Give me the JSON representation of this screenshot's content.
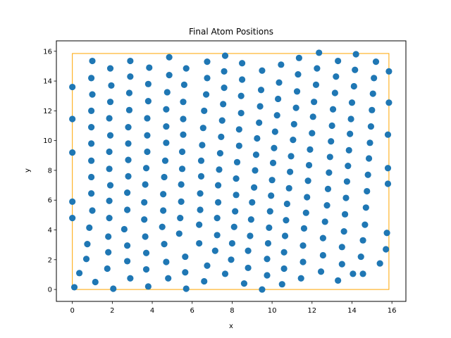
{
  "chart_data": {
    "type": "scatter",
    "title": "Final Atom Positions",
    "xlabel": "x",
    "ylabel": "y",
    "xlim": [
      -0.8,
      16.7
    ],
    "ylim": [
      -0.8,
      16.7
    ],
    "xticks": [
      0,
      2,
      4,
      6,
      8,
      10,
      12,
      14,
      16
    ],
    "yticks": [
      0,
      2,
      4,
      6,
      8,
      10,
      12,
      14,
      16
    ],
    "grid": false,
    "marker_color": "#1f77b4",
    "box": {
      "x0": 0,
      "y0": 0,
      "x1": 15.85,
      "y1": 15.85,
      "color": "#ffa500"
    },
    "points": [
      [
        0.0,
        13.6
      ],
      [
        0.0,
        11.45
      ],
      [
        0.0,
        9.2
      ],
      [
        0.0,
        5.9
      ],
      [
        0.0,
        4.8
      ],
      [
        0.1,
        0.15
      ],
      [
        0.35,
        1.1
      ],
      [
        0.75,
        3.05
      ],
      [
        0.7,
        2.05
      ],
      [
        1.0,
        15.35
      ],
      [
        0.95,
        14.2
      ],
      [
        1.0,
        13.1
      ],
      [
        0.95,
        12.0
      ],
      [
        0.95,
        10.9
      ],
      [
        0.95,
        9.8
      ],
      [
        0.95,
        8.65
      ],
      [
        0.95,
        7.55
      ],
      [
        0.95,
        6.45
      ],
      [
        1.0,
        5.3
      ],
      [
        0.85,
        4.15
      ],
      [
        1.15,
        0.5
      ],
      [
        2.05,
        0.05
      ],
      [
        1.9,
        14.85
      ],
      [
        1.95,
        13.7
      ],
      [
        1.9,
        12.6
      ],
      [
        1.85,
        11.5
      ],
      [
        1.9,
        10.35
      ],
      [
        1.85,
        9.25
      ],
      [
        1.85,
        8.1
      ],
      [
        1.9,
        7.0
      ],
      [
        1.85,
        5.95
      ],
      [
        1.85,
        4.8
      ],
      [
        1.8,
        3.55
      ],
      [
        1.8,
        2.5
      ],
      [
        1.75,
        1.4
      ],
      [
        2.9,
        15.35
      ],
      [
        2.9,
        14.3
      ],
      [
        2.85,
        13.2
      ],
      [
        2.85,
        12.05
      ],
      [
        2.8,
        10.9
      ],
      [
        2.8,
        9.8
      ],
      [
        2.8,
        8.7
      ],
      [
        2.8,
        7.6
      ],
      [
        2.75,
        6.5
      ],
      [
        2.75,
        5.35
      ],
      [
        2.6,
        4.05
      ],
      [
        2.75,
        2.95
      ],
      [
        2.75,
        1.9
      ],
      [
        2.9,
        0.75
      ],
      [
        3.85,
        14.9
      ],
      [
        3.8,
        13.8
      ],
      [
        3.8,
        12.65
      ],
      [
        3.75,
        11.5
      ],
      [
        3.75,
        10.35
      ],
      [
        3.75,
        9.25
      ],
      [
        3.7,
        8.15
      ],
      [
        3.65,
        7.05
      ],
      [
        3.6,
        5.85
      ],
      [
        3.6,
        4.7
      ],
      [
        3.65,
        3.55
      ],
      [
        3.7,
        2.45
      ],
      [
        3.7,
        1.35
      ],
      [
        3.8,
        0.2
      ],
      [
        4.85,
        15.6
      ],
      [
        4.85,
        14.4
      ],
      [
        4.75,
        13.25
      ],
      [
        4.7,
        12.1
      ],
      [
        4.7,
        10.95
      ],
      [
        4.7,
        9.85
      ],
      [
        4.65,
        8.65
      ],
      [
        4.6,
        7.55
      ],
      [
        4.55,
        6.4
      ],
      [
        4.55,
        5.3
      ],
      [
        4.5,
        4.2
      ],
      [
        4.6,
        3.05
      ],
      [
        4.7,
        1.85
      ],
      [
        4.8,
        0.75
      ],
      [
        5.7,
        14.85
      ],
      [
        5.6,
        13.75
      ],
      [
        5.55,
        12.6
      ],
      [
        5.55,
        11.45
      ],
      [
        5.55,
        10.4
      ],
      [
        5.5,
        9.25
      ],
      [
        5.5,
        8.1
      ],
      [
        5.45,
        7.05
      ],
      [
        5.45,
        5.9
      ],
      [
        5.4,
        4.8
      ],
      [
        5.35,
        3.75
      ],
      [
        5.65,
        2.2
      ],
      [
        5.65,
        1.15
      ],
      [
        5.7,
        0.05
      ],
      [
        6.75,
        15.3
      ],
      [
        6.75,
        14.2
      ],
      [
        6.7,
        13.1
      ],
      [
        6.6,
        12.0
      ],
      [
        6.55,
        10.85
      ],
      [
        6.5,
        9.7
      ],
      [
        6.45,
        8.65
      ],
      [
        6.45,
        7.6
      ],
      [
        6.4,
        6.45
      ],
      [
        6.4,
        5.35
      ],
      [
        6.35,
        4.35
      ],
      [
        6.35,
        3.1
      ],
      [
        6.75,
        1.6
      ],
      [
        6.6,
        0.55
      ],
      [
        7.65,
        15.7
      ],
      [
        7.6,
        14.65
      ],
      [
        7.6,
        13.55
      ],
      [
        7.55,
        12.45
      ],
      [
        7.5,
        11.35
      ],
      [
        7.45,
        10.25
      ],
      [
        7.4,
        9.15
      ],
      [
        7.35,
        8.05
      ],
      [
        7.3,
        7.0
      ],
      [
        7.3,
        5.85
      ],
      [
        7.25,
        4.8
      ],
      [
        7.25,
        3.65
      ],
      [
        7.15,
        2.6
      ],
      [
        7.65,
        1.05
      ],
      [
        8.5,
        15.2
      ],
      [
        8.5,
        14.1
      ],
      [
        8.45,
        13.0
      ],
      [
        8.45,
        11.85
      ],
      [
        8.35,
        10.75
      ],
      [
        8.35,
        9.65
      ],
      [
        8.25,
        8.55
      ],
      [
        8.2,
        7.45
      ],
      [
        8.2,
        6.35
      ],
      [
        8.15,
        5.25
      ],
      [
        8.1,
        4.2
      ],
      [
        8.0,
        3.1
      ],
      [
        7.95,
        2.0
      ],
      [
        8.8,
        1.45
      ],
      [
        8.6,
        0.4
      ],
      [
        9.5,
        14.7
      ],
      [
        9.45,
        13.4
      ],
      [
        9.4,
        12.3
      ],
      [
        9.35,
        11.2
      ],
      [
        9.25,
        10.15
      ],
      [
        9.2,
        9.05
      ],
      [
        9.15,
        8.0
      ],
      [
        9.1,
        6.85
      ],
      [
        9.0,
        5.85
      ],
      [
        8.95,
        4.7
      ],
      [
        8.9,
        3.6
      ],
      [
        8.8,
        2.6
      ],
      [
        9.75,
        0.95
      ],
      [
        9.5,
        0.0
      ],
      [
        10.45,
        15.1
      ],
      [
        10.35,
        13.9
      ],
      [
        10.3,
        12.8
      ],
      [
        10.25,
        11.7
      ],
      [
        10.15,
        10.6
      ],
      [
        10.1,
        9.5
      ],
      [
        10.05,
        8.5
      ],
      [
        10.0,
        7.35
      ],
      [
        9.95,
        6.3
      ],
      [
        9.9,
        5.25
      ],
      [
        9.85,
        4.15
      ],
      [
        9.8,
        3.1
      ],
      [
        9.75,
        2.05
      ],
      [
        10.6,
        1.4
      ],
      [
        10.5,
        0.35
      ],
      [
        11.35,
        15.55
      ],
      [
        11.3,
        14.45
      ],
      [
        11.25,
        13.3
      ],
      [
        11.2,
        12.2
      ],
      [
        11.1,
        11.1
      ],
      [
        11.05,
        10.05
      ],
      [
        10.95,
        8.95
      ],
      [
        10.9,
        7.9
      ],
      [
        10.85,
        6.8
      ],
      [
        10.75,
        5.75
      ],
      [
        10.7,
        4.65
      ],
      [
        10.65,
        3.6
      ],
      [
        10.6,
        2.5
      ],
      [
        11.55,
        1.85
      ],
      [
        11.45,
        0.75
      ],
      [
        12.35,
        15.9
      ],
      [
        12.25,
        14.85
      ],
      [
        12.2,
        13.75
      ],
      [
        12.1,
        12.6
      ],
      [
        12.05,
        11.6
      ],
      [
        12.0,
        10.5
      ],
      [
        11.9,
        9.4
      ],
      [
        11.85,
        8.35
      ],
      [
        11.8,
        7.3
      ],
      [
        11.75,
        6.2
      ],
      [
        11.7,
        5.15
      ],
      [
        11.6,
        4.1
      ],
      [
        11.55,
        2.95
      ],
      [
        12.55,
        2.3
      ],
      [
        12.45,
        1.2
      ],
      [
        13.3,
        15.35
      ],
      [
        13.2,
        14.3
      ],
      [
        13.15,
        13.2
      ],
      [
        13.05,
        12.1
      ],
      [
        13.0,
        11.0
      ],
      [
        12.95,
        9.95
      ],
      [
        12.9,
        8.9
      ],
      [
        12.85,
        7.85
      ],
      [
        12.8,
        6.75
      ],
      [
        12.75,
        5.65
      ],
      [
        12.65,
        4.55
      ],
      [
        12.55,
        3.45
      ],
      [
        13.5,
        1.7
      ],
      [
        13.3,
        0.6
      ],
      [
        14.2,
        15.8
      ],
      [
        14.15,
        14.75
      ],
      [
        14.1,
        13.65
      ],
      [
        14.0,
        12.55
      ],
      [
        13.95,
        11.45
      ],
      [
        13.9,
        10.45
      ],
      [
        13.85,
        9.35
      ],
      [
        13.8,
        8.3
      ],
      [
        13.75,
        7.25
      ],
      [
        13.7,
        6.15
      ],
      [
        13.65,
        5.05
      ],
      [
        13.6,
        3.9
      ],
      [
        13.5,
        2.85
      ],
      [
        14.05,
        1.05
      ],
      [
        15.2,
        15.3
      ],
      [
        15.1,
        14.2
      ],
      [
        15.05,
        13.15
      ],
      [
        15.0,
        12.05
      ],
      [
        14.95,
        10.95
      ],
      [
        14.9,
        9.85
      ],
      [
        14.85,
        8.8
      ],
      [
        14.8,
        7.7
      ],
      [
        14.75,
        6.6
      ],
      [
        14.7,
        5.5
      ],
      [
        14.65,
        4.35
      ],
      [
        14.55,
        3.3
      ],
      [
        14.45,
        2.2
      ],
      [
        14.55,
        1.05
      ],
      [
        15.4,
        1.75
      ],
      [
        15.85,
        14.65
      ],
      [
        15.85,
        12.55
      ],
      [
        15.8,
        10.4
      ],
      [
        15.8,
        8.15
      ],
      [
        15.8,
        7.1
      ],
      [
        15.75,
        3.8
      ],
      [
        15.7,
        2.7
      ]
    ]
  }
}
